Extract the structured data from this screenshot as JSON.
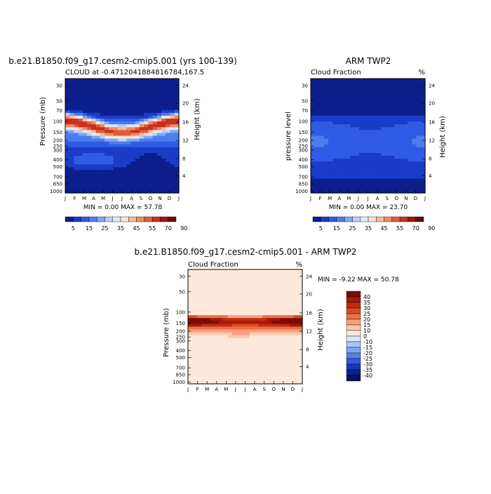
{
  "panels": {
    "model": {
      "title": "b.e21.B1850.f09_g17.cesm2-cmip5.001 (yrs 100-139)",
      "subtitle": "CLOUD at -0.4712041884816784,167.5",
      "units": "",
      "ylabel_left": "Pressure (mb)",
      "ylabel_right": "Height (km)",
      "minmax": "MIN =   0.00 MAX =  57.78"
    },
    "obs": {
      "title": "ARM TWP2",
      "subtitle": "Cloud Fraction",
      "units": "%",
      "ylabel_left": "pressure level",
      "ylabel_right": "Height (km)",
      "minmax": "MIN =   0.00 MAX =  23.70"
    },
    "diff": {
      "title": "b.e21.B1850.f09_g17.cesm2-cmip5.001 - ARM TWP2",
      "subtitle": "Cloud Fraction",
      "units": "%",
      "ylabel_left": "Pressure (mb)",
      "ylabel_right": "Height (km)",
      "minmax": "MIN =  -9.22 MAX =  50.78"
    }
  },
  "chart_data": [
    {
      "type": "heatmap",
      "title": "b.e21.B1850.f09_g17.cesm2-cmip5.001 (yrs 100-139)",
      "subtitle": "CLOUD at -0.4712041884816784,167.5",
      "x": [
        "J",
        "F",
        "M",
        "A",
        "M",
        "J",
        "J",
        "A",
        "S",
        "O",
        "N",
        "D",
        "J"
      ],
      "y_left_ticks": [
        "30",
        "50",
        "70",
        "100",
        "150",
        "200",
        "250",
        "300",
        "400",
        "500",
        "700",
        "850",
        "1000"
      ],
      "y_right_ticks": [
        "24",
        "20",
        "16",
        "12",
        "8",
        "4"
      ],
      "ylabel": "Pressure (mb)",
      "ylabel_right": "Height (km)",
      "min": 0.0,
      "max": 57.78,
      "colorbar_levels": [
        "5",
        "15",
        "25",
        "35",
        "45",
        "55",
        "70",
        "90"
      ],
      "colors": [
        "#0d1f8c",
        "#1a3cc8",
        "#2f5be6",
        "#4a7ef0",
        "#7fa6f5",
        "#b9d0f8",
        "#dfe9fb",
        "#fbe3d0",
        "#f7b898",
        "#f08a66",
        "#e25a3c",
        "#c9301d",
        "#a0160f",
        "#6b0808"
      ]
    },
    {
      "type": "heatmap",
      "title": "ARM TWP2",
      "subtitle": "Cloud Fraction",
      "x": [
        "J",
        "F",
        "M",
        "A",
        "M",
        "J",
        "J",
        "A",
        "S",
        "O",
        "N",
        "D",
        "J"
      ],
      "y_left_ticks": [
        "30",
        "50",
        "70",
        "100",
        "150",
        "200",
        "250",
        "300",
        "400",
        "500",
        "700",
        "850",
        "1000"
      ],
      "y_right_ticks": [
        "24",
        "20",
        "16",
        "12",
        "8",
        "4"
      ],
      "ylabel": "pressure level",
      "ylabel_right": "Height (km)",
      "units": "%",
      "min": 0.0,
      "max": 23.7,
      "colorbar_levels": [
        "5",
        "15",
        "25",
        "35",
        "45",
        "55",
        "70",
        "90"
      ]
    },
    {
      "type": "heatmap",
      "title": "b.e21.B1850.f09_g17.cesm2-cmip5.001 - ARM TWP2",
      "subtitle": "Cloud Fraction",
      "x": [
        "J",
        "F",
        "M",
        "A",
        "M",
        "J",
        "J",
        "A",
        "S",
        "O",
        "N",
        "D",
        "J"
      ],
      "y_left_ticks": [
        "30",
        "50",
        "100",
        "150",
        "200",
        "250",
        "300",
        "400",
        "500",
        "700",
        "850",
        "1000"
      ],
      "y_right_ticks": [
        "24",
        "20",
        "16",
        "12",
        "8",
        "4"
      ],
      "ylabel": "Pressure (mb)",
      "ylabel_right": "Height (km)",
      "units": "%",
      "min": -9.22,
      "max": 50.78,
      "colorbar_levels": [
        "40",
        "35",
        "30",
        "25",
        "20",
        "15",
        "10",
        "0",
        "-10",
        "-15",
        "-20",
        "-25",
        "-30",
        "-35",
        "-40"
      ],
      "colors_diff": [
        "#7a0c06",
        "#a3180b",
        "#c42a12",
        "#dc4a24",
        "#ea7246",
        "#f3a17f",
        "#f8c9ae",
        "#fde9dc",
        "#d8e8fb",
        "#aac6f3",
        "#7ea5ee",
        "#5282e8",
        "#2f5be0",
        "#1638bf",
        "#0b2192",
        "#06135f"
      ]
    }
  ]
}
